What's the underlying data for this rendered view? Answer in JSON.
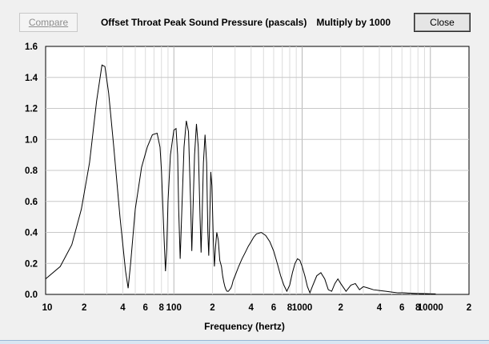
{
  "toolbar": {
    "compare_label": "Compare",
    "close_label": "Close"
  },
  "header": {
    "title": "Offset Throat Peak Sound Pressure (pascals)",
    "multiplier": "Multiply by 1000"
  },
  "chart_data": {
    "type": "line",
    "title": "Offset Throat Peak Sound Pressure (pascals)",
    "xlabel": "Frequency (hertz)",
    "ylabel": "",
    "x_scale": "log",
    "xlim": [
      10,
      20000
    ],
    "ylim": [
      0,
      1.6
    ],
    "grid": true,
    "y_ticks": [
      "0.0",
      "0.2",
      "0.4",
      "0.6",
      "0.8",
      "1.0",
      "1.2",
      "1.4",
      "1.6"
    ],
    "x_ticks": [
      "10",
      "2",
      "4",
      "6",
      "8",
      "100",
      "2",
      "4",
      "6",
      "8",
      "1000",
      "2",
      "4",
      "6",
      "8",
      "10000",
      "2"
    ],
    "series": [
      {
        "x": [
          10,
          13,
          16,
          19,
          22,
          25,
          27.5,
          29,
          31,
          34,
          38,
          42,
          44,
          46,
          50,
          56,
          62,
          68,
          74,
          78,
          80,
          84,
          86,
          88,
          90,
          94,
          100,
          104,
          107,
          109,
          112,
          116,
          120,
          125,
          130,
          135,
          138,
          141,
          145,
          150,
          155,
          160,
          163,
          166,
          170,
          175,
          180,
          184,
          187,
          190,
          194,
          198,
          203,
          207,
          211,
          216,
          222,
          228,
          235,
          240,
          245,
          250,
          255,
          260,
          266,
          272,
          278,
          284,
          290,
          300,
          320,
          340,
          360,
          380,
          400,
          420,
          440,
          480,
          520,
          560,
          600,
          640,
          680,
          720,
          760,
          800,
          840,
          880,
          920,
          960,
          1000,
          1050,
          1100,
          1150,
          1200,
          1300,
          1400,
          1500,
          1600,
          1700,
          1800,
          1900,
          2000,
          2200,
          2400,
          2600,
          2800,
          3000,
          3300,
          3600,
          4000,
          4500,
          5000,
          5600,
          6200,
          7000,
          8000,
          9000,
          10000,
          11000
        ],
        "values": [
          0.1,
          0.18,
          0.32,
          0.55,
          0.85,
          1.25,
          1.48,
          1.47,
          1.3,
          0.95,
          0.5,
          0.15,
          0.04,
          0.2,
          0.55,
          0.82,
          0.95,
          1.03,
          1.04,
          0.95,
          0.8,
          0.35,
          0.15,
          0.3,
          0.6,
          0.9,
          1.06,
          1.07,
          0.9,
          0.55,
          0.23,
          0.6,
          0.95,
          1.12,
          1.05,
          0.6,
          0.28,
          0.55,
          0.9,
          1.1,
          0.95,
          0.5,
          0.27,
          0.5,
          0.85,
          1.03,
          0.85,
          0.4,
          0.25,
          0.45,
          0.79,
          0.7,
          0.35,
          0.18,
          0.3,
          0.4,
          0.35,
          0.22,
          0.18,
          0.12,
          0.08,
          0.05,
          0.03,
          0.02,
          0.02,
          0.03,
          0.04,
          0.06,
          0.09,
          0.12,
          0.18,
          0.23,
          0.27,
          0.31,
          0.34,
          0.37,
          0.39,
          0.4,
          0.38,
          0.34,
          0.28,
          0.2,
          0.12,
          0.06,
          0.02,
          0.06,
          0.14,
          0.2,
          0.23,
          0.22,
          0.18,
          0.12,
          0.05,
          0.01,
          0.05,
          0.12,
          0.14,
          0.1,
          0.03,
          0.02,
          0.07,
          0.1,
          0.07,
          0.02,
          0.06,
          0.07,
          0.03,
          0.05,
          0.04,
          0.03,
          0.025,
          0.02,
          0.015,
          0.01,
          0.01,
          0.008,
          0.006,
          0.005,
          0.004,
          0.003
        ]
      }
    ]
  }
}
